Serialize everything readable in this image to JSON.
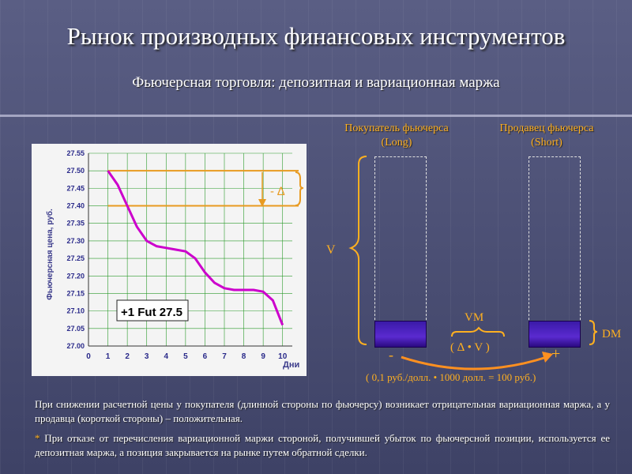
{
  "title": "Рынок производных финансовых инструментов",
  "subtitle": "Фьючерсная торговля: депозитная и вариационная маржа",
  "columns": {
    "long": {
      "title": "Покупатель фьючерса",
      "sub": "(Long)"
    },
    "short": {
      "title": "Продавец фьючерса",
      "sub": "(Short)"
    }
  },
  "labels": {
    "v": "V",
    "dm": "DM",
    "vm": "VM",
    "minus": "-",
    "plus": "+",
    "delta_v": "( ∆ • V )",
    "formula": "( 0,1 руб./долл. • 1000 долл. = 100 руб.)"
  },
  "chart_data": {
    "type": "line",
    "ylabel": "Фьючерсная цена, руб.",
    "xlabel": "Дни",
    "x_ticks": [
      "0",
      "1",
      "2",
      "3",
      "4",
      "5",
      "6",
      "7",
      "8",
      "9",
      "10"
    ],
    "y_ticks": [
      "27.55",
      "27.50",
      "27.45",
      "27.40",
      "27.35",
      "27.30",
      "27.25",
      "27.20",
      "27.15",
      "27.10",
      "27.05",
      "27.00"
    ],
    "xlim": [
      0,
      10.5
    ],
    "ylim": [
      27.0,
      27.55
    ],
    "series": [
      {
        "x": [
          1.0,
          1.5,
          2.0,
          2.5,
          3.0,
          3.5,
          4.0,
          4.5,
          5.0,
          5.5,
          6.0,
          6.5,
          7.0,
          7.5,
          8.0,
          8.5,
          9.0,
          9.5,
          10.0
        ],
        "y": [
          27.5,
          27.46,
          27.4,
          27.34,
          27.3,
          27.285,
          27.28,
          27.275,
          27.27,
          27.25,
          27.21,
          27.18,
          27.165,
          27.16,
          27.16,
          27.16,
          27.155,
          27.13,
          27.06
        ],
        "color": "#cc00cc"
      }
    ],
    "ref_lines": [
      27.5,
      27.4
    ],
    "ref_color": "#e89a20",
    "annotation_delta": "- ∆",
    "annotation_box": "+1 Fut 27.5"
  },
  "notes": {
    "para1": "При снижении расчетной цены у покупателя (длинной стороны по фьючерсу) возникает отрицательная вариационная маржа, а у продавца (короткой стороны) – положительная.",
    "star": "*",
    "para2": " При отказе от перечисления вариационной маржи стороной, получившей убыток по фьючерсной позиции, используется ее депозитная маржа, а позиция закрывается на рынке путем обратной сделки."
  }
}
